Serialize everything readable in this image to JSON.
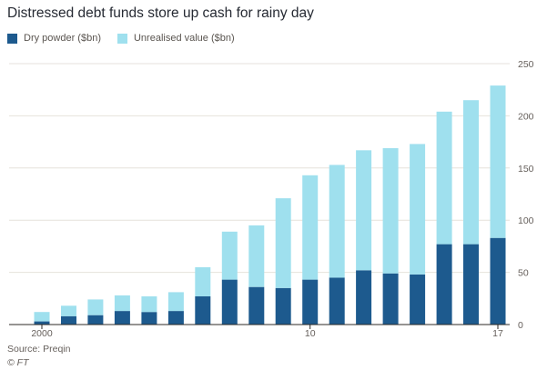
{
  "title": "Distressed debt funds store up cash for rainy day",
  "source": "Source: Preqin",
  "credit": "© FT",
  "colors": {
    "dry_powder": "#1d5a8e",
    "unrealised_value": "#9fe0ee",
    "grid": "#e6e2dc",
    "axis": "#2d2926"
  },
  "chart_data": {
    "type": "bar",
    "stacked": true,
    "categories": [
      "2000",
      "2001",
      "2002",
      "2003",
      "2004",
      "2005",
      "2006",
      "2007",
      "2008",
      "2009",
      "2010",
      "2011",
      "2012",
      "2013",
      "2014",
      "2015",
      "2016",
      "2017"
    ],
    "x_tick_labels": [
      "2000",
      "",
      "",
      "",
      "",
      "",
      "",
      "",
      "",
      "",
      "10",
      "",
      "",
      "",
      "",
      "",
      "",
      "17"
    ],
    "series": [
      {
        "name": "Dry powder ($bn)",
        "values": [
          3,
          8,
          9,
          13,
          12,
          13,
          27,
          43,
          36,
          35,
          43,
          45,
          52,
          49,
          48,
          77,
          77,
          83
        ]
      },
      {
        "name": "Unrealised value ($bn)",
        "values": [
          9,
          10,
          15,
          15,
          15,
          18,
          28,
          46,
          59,
          86,
          100,
          108,
          115,
          120,
          125,
          127,
          138,
          146
        ]
      }
    ],
    "ylim": [
      0,
      250
    ],
    "y_ticks": [
      0,
      50,
      100,
      150,
      200,
      250
    ],
    "y_axis_side": "right",
    "grid": true,
    "legend_position": "top-left",
    "xlabel": "",
    "ylabel": ""
  }
}
